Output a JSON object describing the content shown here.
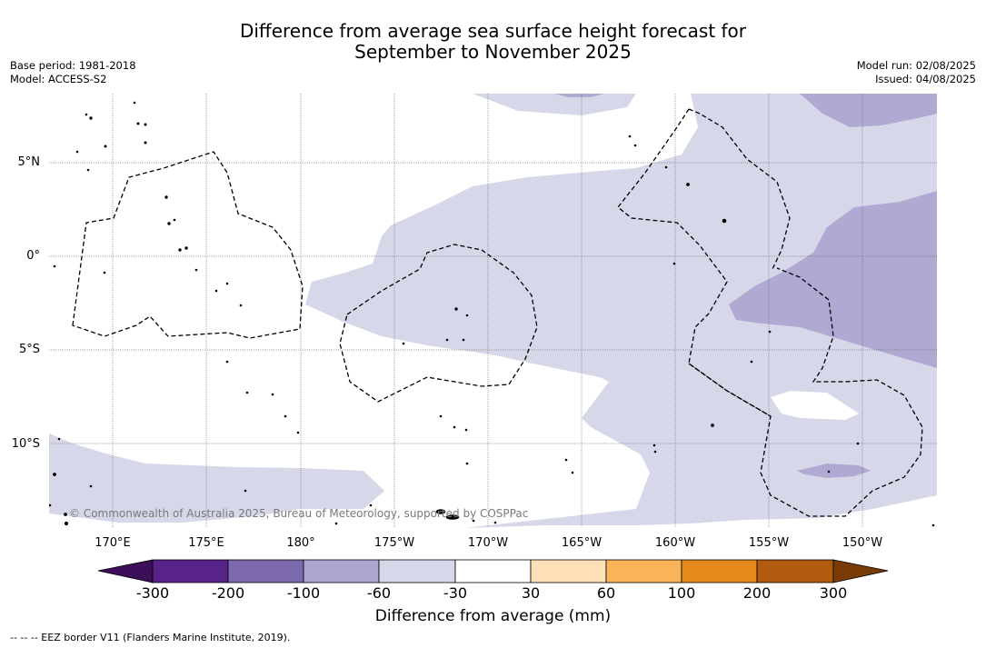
{
  "title": {
    "line1": "Difference from average sea surface height forecast for",
    "line2": "September to November 2025"
  },
  "meta_left": {
    "base_period": "Base period: 1981-2018",
    "model": "Model: ACCESS-S2"
  },
  "meta_right": {
    "model_run": "Model run: 02/08/2025",
    "issued": "Issued: 04/08/2025"
  },
  "lat_labels": [
    "5°N",
    "0°",
    "5°S",
    "10°S"
  ],
  "lon_labels": [
    "170°E",
    "175°E",
    "180°",
    "175°W",
    "170°W",
    "165°W",
    "160°W",
    "155°W",
    "150°W"
  ],
  "copyright": "© Commonwealth of Australia 2025, Bureau of Meteorology, supported by COSPPac",
  "colorbar": {
    "ticks": [
      "-300",
      "-200",
      "-100",
      "-60",
      "-30",
      "30",
      "60",
      "100",
      "200",
      "300"
    ],
    "colors": {
      "below_min": "#3b0f5a",
      "c1": "#572389",
      "c2": "#7c6aad",
      "c3": "#ada7d0",
      "c4": "#d7d7ea",
      "c5": "#ffffff",
      "c6": "#fde0b8",
      "c7": "#f9b358",
      "c8": "#e38a1b",
      "c9": "#b15b0f",
      "above_max": "#7a3c06"
    },
    "title": "Difference from average (mm)"
  },
  "map_colors": {
    "light": "#d7d7ea",
    "mid": "#b0aad2",
    "ocean": "#ffffff"
  },
  "footnote": "--  --  -- EEZ border V11 (Flanders Marine Institute, 2019)."
}
